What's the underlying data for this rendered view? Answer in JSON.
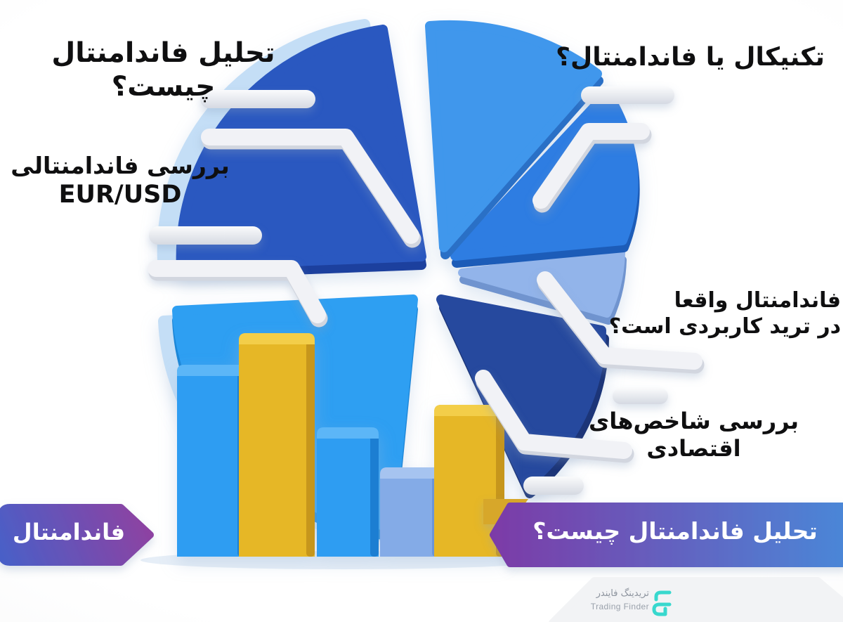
{
  "headings": {
    "top_left": "تحلیل فاندامنتال چیست؟",
    "top_right": "تکنیکال یا فاندامنتال؟",
    "left_line1": "بررسی فاندامنتالی",
    "left_line2": "EUR/USD",
    "right_line1": "فاندامنتال واقعا",
    "right_line2": "در ترید کاربردی است؟",
    "econ_line1": "بررسی شاخص‌های",
    "econ_line2": "اقتصادی"
  },
  "badges": {
    "left": {
      "label": "فاندامنتال",
      "gradient_start": "#4a5fc7",
      "gradient_end": "#92409f"
    },
    "right": {
      "label": "تحلیل فاندامنتال چیست؟",
      "gradient_start": "#7c3ba7",
      "gradient_end": "#4b86d7",
      "accent_color": "#d7a72c"
    }
  },
  "logo": {
    "title_fa": "تریدینگ فایندر",
    "title_en": "Trading Finder",
    "icon": "trading-finder-mark",
    "icon_color": "#38d8ce",
    "plaque_color": "#f2f3f5"
  },
  "chart_data": [
    {
      "type": "pie",
      "title": "",
      "style": "3d-exploded-illustration",
      "legend": false,
      "slices": [
        {
          "name": "top-left-large",
          "share": 28,
          "color": "#2c58c0",
          "side_color": "#1e409e",
          "rim_color": "#c4def6"
        },
        {
          "name": "top-right",
          "share": 12,
          "color": "#3f97ec",
          "side_color": "#2a6fc6",
          "rim_color": "#c4def6"
        },
        {
          "name": "right",
          "share": 12,
          "color": "#2e7de2",
          "side_color": "#1d5cb8",
          "rim_color": "#c4def6"
        },
        {
          "name": "lower-right-thin",
          "share": 5,
          "color": "#92b4ea",
          "side_color": "#6f94cf",
          "rim_color": "#c4def6"
        },
        {
          "name": "bottom-right",
          "share": 17,
          "color": "#28499e",
          "side_color": "#1a3578",
          "rim_color": "#c4def6"
        },
        {
          "name": "bottom-left",
          "share": 26,
          "color": "#2e9ff2",
          "side_color": "#1f87d8",
          "rim_color": "#c4def6"
        }
      ]
    },
    {
      "type": "bar",
      "title": "",
      "axis": false,
      "grid": false,
      "categories": [
        "",
        "",
        "",
        "",
        ""
      ],
      "values": [
        86,
        100,
        58,
        40,
        68
      ],
      "colors": [
        "#2e9df2",
        "#e6b725",
        "#2e9df2",
        "#84abe7",
        "#e6b725"
      ],
      "top_colors": [
        "#5cb6f7",
        "#f3ce4a",
        "#5cb6f7",
        "#a6c4f0",
        "#f3ce4a"
      ],
      "side_colors": [
        "#1f7ed2",
        "#c6961b",
        "#1f7ed2",
        "#6b95d8",
        "#c6961b"
      ]
    }
  ]
}
